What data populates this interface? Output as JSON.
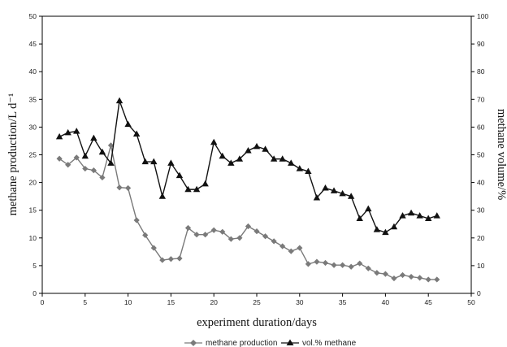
{
  "chart_data": {
    "type": "line",
    "title": "",
    "xlabel": "experiment  duration/days",
    "ylabel_left": "methane production/L d⁻¹",
    "ylabel_right": "methane volume/%",
    "xlim": [
      0,
      50
    ],
    "ylim_left": [
      0,
      50
    ],
    "ylim_right": [
      0,
      100
    ],
    "x_ticks": [
      "0",
      "5",
      "10",
      "15",
      "20",
      "25",
      "30",
      "35",
      "40",
      "45",
      "50"
    ],
    "y_left_ticks": [
      "0",
      "5",
      "10",
      "15",
      "20",
      "25",
      "30",
      "35",
      "40",
      "45",
      "50"
    ],
    "y_right_ticks": [
      "0",
      "10",
      "20",
      "30",
      "40",
      "50",
      "60",
      "70",
      "80",
      "90",
      "100"
    ],
    "grid": false,
    "legend_position": "bottom",
    "series": [
      {
        "name": "methane production",
        "axis": "left",
        "marker": "diamond",
        "color": "#7a7a7a",
        "x": [
          2,
          3,
          4,
          5,
          6,
          7,
          8,
          9,
          10,
          11,
          12,
          13,
          14,
          15,
          16,
          17,
          18,
          19,
          20,
          21,
          22,
          23,
          24,
          25,
          26,
          27,
          28,
          29,
          30,
          31,
          32,
          33,
          34,
          35,
          36,
          37,
          38,
          39,
          40,
          41,
          42,
          43,
          44,
          45,
          46
        ],
        "y": [
          24.3,
          23.2,
          24.5,
          22.5,
          22.2,
          20.9,
          26.7,
          19.1,
          19.0,
          13.2,
          10.5,
          8.2,
          6.0,
          6.2,
          6.3,
          11.8,
          10.6,
          10.6,
          11.4,
          11.1,
          9.8,
          10.0,
          12.1,
          11.2,
          10.3,
          9.4,
          8.5,
          7.6,
          8.2,
          5.3,
          5.7,
          5.5,
          5.1,
          5.1,
          4.8,
          5.4,
          4.5,
          3.7,
          3.5,
          2.7,
          3.3,
          3.0,
          2.8,
          2.5,
          2.5
        ]
      },
      {
        "name": "vol.% methane",
        "axis": "right",
        "marker": "triangle",
        "color": "#111111",
        "x": [
          2,
          3,
          4,
          5,
          6,
          7,
          8,
          9,
          10,
          11,
          12,
          13,
          14,
          15,
          16,
          17,
          18,
          19,
          20,
          21,
          22,
          23,
          24,
          25,
          26,
          27,
          28,
          29,
          30,
          31,
          32,
          33,
          34,
          35,
          36,
          37,
          38,
          39,
          40,
          41,
          42,
          43,
          44,
          45,
          46
        ],
        "y": [
          56.5,
          58.0,
          58.5,
          49.5,
          56.0,
          51.0,
          47.0,
          69.5,
          61.0,
          57.5,
          47.5,
          47.5,
          35.0,
          47.0,
          42.5,
          37.5,
          37.5,
          39.5,
          54.5,
          49.5,
          47.0,
          48.5,
          51.5,
          53.0,
          52.0,
          48.5,
          48.5,
          47.0,
          45.0,
          44.0,
          34.5,
          38.0,
          37.0,
          36.0,
          35.0,
          27.0,
          30.5,
          23.0,
          22.0,
          24.0,
          28.0,
          29.0,
          28.0,
          27.0,
          28.0
        ]
      }
    ]
  }
}
